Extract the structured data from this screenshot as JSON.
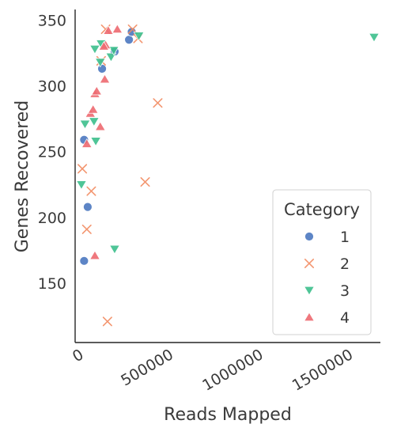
{
  "chart_data": {
    "type": "scatter",
    "xlabel": "Reads Mapped",
    "ylabel": "Genes Recovered",
    "xlim": [
      0,
      1700000
    ],
    "ylim": [
      105,
      358
    ],
    "x_ticks": [
      0,
      500000,
      1000000,
      1500000
    ],
    "x_tick_labels": [
      "0",
      "500000",
      "1000000",
      "1500000"
    ],
    "y_ticks": [
      150,
      200,
      250,
      300,
      350
    ],
    "y_tick_labels": [
      "150",
      "200",
      "250",
      "300",
      "350"
    ],
    "grid": false,
    "legend": {
      "title": "Category",
      "placement": "lower-right"
    },
    "series": [
      {
        "name": "1",
        "marker": "circle",
        "color": "#4c78c0",
        "points": [
          [
            50000,
            259
          ],
          [
            70000,
            208
          ],
          [
            50000,
            167
          ],
          [
            150000,
            313
          ],
          [
            220000,
            326
          ],
          [
            300000,
            335
          ],
          [
            315000,
            341
          ]
        ]
      },
      {
        "name": "2",
        "marker": "x",
        "color": "#f28b60",
        "points": [
          [
            40000,
            237
          ],
          [
            90000,
            220
          ],
          [
            65000,
            191
          ],
          [
            180000,
            121
          ],
          [
            390000,
            227
          ],
          [
            460000,
            287
          ],
          [
            170000,
            343
          ],
          [
            320000,
            343
          ],
          [
            350000,
            336
          ],
          [
            145000,
            319
          ]
        ]
      },
      {
        "name": "3",
        "marker": "triangle-down",
        "color": "#3cbf8c",
        "points": [
          [
            35000,
            225
          ],
          [
            55000,
            271
          ],
          [
            115000,
            258
          ],
          [
            105000,
            273
          ],
          [
            220000,
            176
          ],
          [
            110000,
            328
          ],
          [
            145000,
            332
          ],
          [
            200000,
            322
          ],
          [
            215000,
            327
          ],
          [
            355000,
            338
          ],
          [
            140000,
            318
          ],
          [
            1840000,
            337
          ]
        ]
      },
      {
        "name": "4",
        "marker": "triangle-up",
        "color": "#ee6a71",
        "points": [
          [
            65000,
            256
          ],
          [
            85000,
            279
          ],
          [
            100000,
            282
          ],
          [
            110000,
            294
          ],
          [
            120000,
            296
          ],
          [
            140000,
            269
          ],
          [
            165000,
            305
          ],
          [
            170000,
            331
          ],
          [
            185000,
            342
          ],
          [
            235000,
            343
          ],
          [
            110000,
            171
          ],
          [
            160000,
            330
          ]
        ]
      }
    ]
  }
}
